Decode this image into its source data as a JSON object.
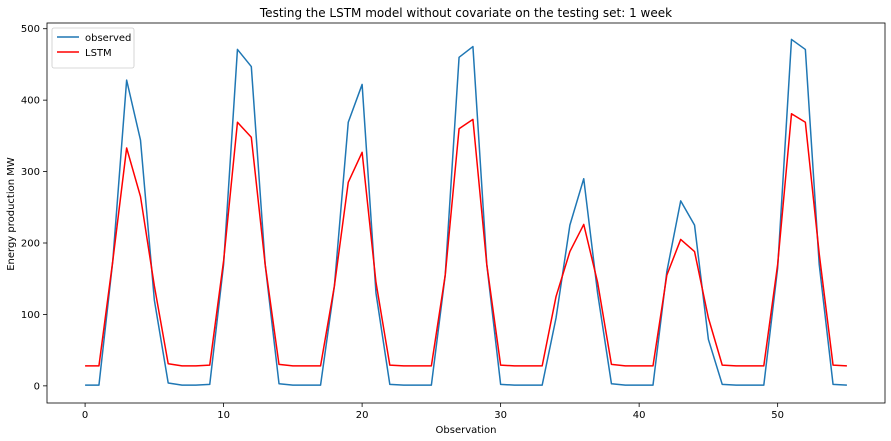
{
  "chart_data": {
    "type": "line",
    "title": "Testing the LSTM model without covariate on the testing set: 1 week",
    "xlabel": "Observation",
    "ylabel": "Energy production MW",
    "xlim": [
      -2.75,
      57.75
    ],
    "ylim": [
      -24,
      508
    ],
    "xticks": [
      0,
      10,
      20,
      30,
      40,
      50
    ],
    "yticks": [
      0,
      100,
      200,
      300,
      400,
      500
    ],
    "grid": false,
    "legend_position": "top-left",
    "x": [
      0,
      1,
      2,
      3,
      4,
      5,
      6,
      7,
      8,
      9,
      10,
      11,
      12,
      13,
      14,
      15,
      16,
      17,
      18,
      19,
      20,
      21,
      22,
      23,
      24,
      25,
      26,
      27,
      28,
      29,
      30,
      31,
      32,
      33,
      34,
      35,
      36,
      37,
      38,
      39,
      40,
      41,
      42,
      43,
      44,
      45,
      46,
      47,
      48,
      49,
      50,
      51,
      52,
      53,
      54,
      55
    ],
    "series": [
      {
        "name": "observed",
        "color": "#1f77b4",
        "values": [
          1,
          1,
          175,
          428,
          344,
          120,
          4,
          1,
          1,
          2,
          170,
          471,
          447,
          170,
          3,
          1,
          1,
          1,
          140,
          369,
          422,
          130,
          2,
          1,
          1,
          1,
          155,
          460,
          475,
          170,
          2,
          1,
          1,
          1,
          95,
          225,
          290,
          130,
          3,
          1,
          1,
          1,
          160,
          259,
          225,
          65,
          2,
          1,
          1,
          1,
          165,
          485,
          471,
          170,
          2,
          1
        ]
      },
      {
        "name": "LSTM",
        "color": "#ff0000",
        "values": [
          28,
          28,
          175,
          333,
          265,
          140,
          31,
          28,
          28,
          29,
          175,
          369,
          348,
          170,
          30,
          28,
          28,
          28,
          140,
          285,
          327,
          145,
          29,
          28,
          28,
          28,
          155,
          360,
          373,
          170,
          29,
          28,
          28,
          28,
          125,
          188,
          226,
          145,
          30,
          28,
          28,
          28,
          155,
          205,
          188,
          95,
          29,
          28,
          28,
          28,
          170,
          381,
          369,
          185,
          29,
          28
        ]
      }
    ]
  }
}
